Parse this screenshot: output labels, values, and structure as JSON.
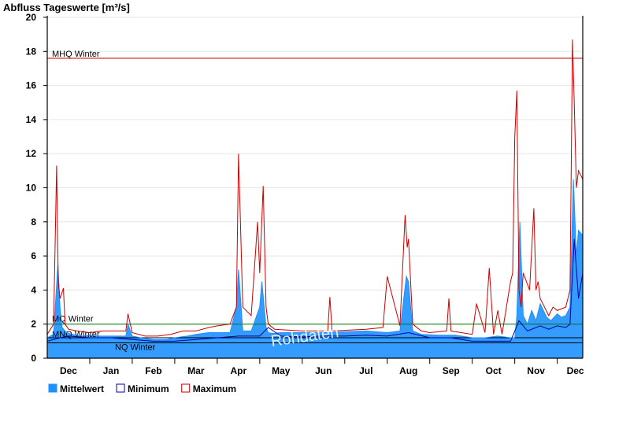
{
  "chart_data": {
    "type": "area",
    "title": "Abfluss Tageswerte [m³/s]",
    "ylim": [
      0,
      20
    ],
    "yticks": [
      0,
      2,
      4,
      6,
      8,
      10,
      12,
      14,
      16,
      18,
      20
    ],
    "x_unit": "month",
    "xlim": [
      0,
      12.6
    ],
    "month_labels": [
      "Dec",
      "Jan",
      "Feb",
      "Mar",
      "Apr",
      "May",
      "Jun",
      "Jul",
      "Aug",
      "Sep",
      "Oct",
      "Nov",
      "Dec"
    ],
    "grid": true,
    "legend_position": "bottom-left",
    "watermark": "Rohdaten",
    "reference_lines": [
      {
        "label": "MHQ Winter",
        "value": 17.6,
        "color": "#cc0000"
      },
      {
        "label": "MQ Winter",
        "value": 2.0,
        "color": "#007700"
      },
      {
        "label": "MNQ Winter",
        "value": 1.2,
        "color": "#000000"
      },
      {
        "label": "NQ Winter",
        "value": 0.9,
        "color": "#000000"
      }
    ],
    "series": [
      {
        "name": "Mittelwert",
        "color": "#1e90ff",
        "fill": true,
        "x": [
          0.0,
          0.15,
          0.25,
          0.3,
          0.35,
          0.45,
          0.6,
          0.8,
          1.0,
          1.2,
          1.5,
          1.7,
          1.85,
          1.9,
          2.0,
          2.2,
          2.5,
          2.8,
          3.0,
          3.3,
          3.5,
          3.8,
          4.0,
          4.3,
          4.45,
          4.5,
          4.6,
          4.8,
          5.0,
          5.05,
          5.15,
          5.2,
          5.3,
          5.5,
          6.0,
          6.5,
          7.0,
          7.5,
          8.0,
          8.3,
          8.45,
          8.5,
          8.6,
          8.8,
          9.2,
          9.6,
          10.0,
          10.3,
          10.6,
          10.9,
          11.0,
          11.05,
          11.12,
          11.2,
          11.3,
          11.4,
          11.5,
          11.6,
          11.75,
          11.85,
          12.0,
          12.1,
          12.2,
          12.3,
          12.38,
          12.45,
          12.5,
          12.6
        ],
        "y": [
          1.2,
          1.4,
          5.5,
          3.0,
          1.8,
          1.5,
          1.4,
          1.3,
          1.35,
          1.3,
          1.3,
          1.3,
          1.3,
          2.0,
          1.3,
          1.2,
          1.1,
          1.1,
          1.2,
          1.3,
          1.4,
          1.5,
          1.5,
          1.5,
          3.0,
          5.2,
          1.6,
          1.6,
          3.0,
          4.5,
          1.8,
          1.5,
          1.45,
          1.5,
          1.5,
          1.5,
          1.55,
          1.6,
          1.5,
          1.6,
          4.8,
          4.5,
          1.6,
          1.4,
          1.35,
          1.35,
          1.2,
          1.2,
          1.3,
          1.2,
          1.2,
          2.5,
          8.0,
          2.5,
          2.0,
          2.8,
          2.2,
          3.2,
          2.4,
          2.2,
          2.6,
          2.4,
          2.5,
          3.0,
          10.5,
          6.0,
          7.5,
          7.2
        ]
      },
      {
        "name": "Minimum",
        "color": "#0000aa",
        "fill": false,
        "x": [
          0.0,
          0.3,
          0.5,
          1.0,
          1.5,
          2.0,
          2.5,
          3.0,
          3.5,
          4.0,
          4.5,
          5.0,
          5.2,
          5.5,
          6.0,
          6.5,
          7.0,
          7.5,
          8.0,
          8.5,
          9.0,
          9.5,
          10.0,
          10.5,
          10.9,
          11.1,
          11.3,
          11.6,
          11.8,
          12.0,
          12.2,
          12.3,
          12.4,
          12.5,
          12.6
        ],
        "y": [
          1.0,
          1.2,
          1.3,
          1.2,
          1.2,
          1.1,
          1.0,
          1.0,
          1.1,
          1.2,
          1.3,
          1.3,
          1.8,
          1.3,
          1.25,
          1.3,
          1.3,
          1.35,
          1.3,
          1.5,
          1.2,
          1.2,
          1.0,
          1.0,
          1.0,
          2.2,
          1.6,
          1.9,
          1.7,
          1.9,
          1.8,
          2.0,
          7.0,
          3.5,
          5.0
        ]
      },
      {
        "name": "Maximum",
        "color": "#cc0000",
        "fill": false,
        "x": [
          0.0,
          0.15,
          0.22,
          0.26,
          0.3,
          0.38,
          0.42,
          0.5,
          0.7,
          1.0,
          1.3,
          1.6,
          1.85,
          1.9,
          2.0,
          2.3,
          2.6,
          2.9,
          3.2,
          3.5,
          3.8,
          4.0,
          4.3,
          4.45,
          4.5,
          4.6,
          4.8,
          4.95,
          5.0,
          5.08,
          5.15,
          5.2,
          5.35,
          6.0,
          6.6,
          6.65,
          6.7,
          7.5,
          7.9,
          8.0,
          8.3,
          8.42,
          8.47,
          8.5,
          8.6,
          8.8,
          9.0,
          9.4,
          9.45,
          9.5,
          10.0,
          10.1,
          10.3,
          10.4,
          10.5,
          10.6,
          10.7,
          10.9,
          10.95,
          11.0,
          11.05,
          11.1,
          11.15,
          11.2,
          11.35,
          11.45,
          11.5,
          11.55,
          11.6,
          11.8,
          11.9,
          12.0,
          12.2,
          12.3,
          12.36,
          12.4,
          12.45,
          12.5,
          12.6
        ],
        "y": [
          1.4,
          2.0,
          11.3,
          4.5,
          3.5,
          4.1,
          2.0,
          1.7,
          1.6,
          1.5,
          1.6,
          1.6,
          1.6,
          2.6,
          1.5,
          1.3,
          1.3,
          1.4,
          1.6,
          1.6,
          1.8,
          1.9,
          2.0,
          3.0,
          12.0,
          3.0,
          2.5,
          8.0,
          5.0,
          10.1,
          3.0,
          2.0,
          1.7,
          1.6,
          1.6,
          3.6,
          1.6,
          1.7,
          1.8,
          4.8,
          1.9,
          8.4,
          6.5,
          7.0,
          2.0,
          1.6,
          1.5,
          1.6,
          3.5,
          1.6,
          1.4,
          3.2,
          1.5,
          5.3,
          1.4,
          2.8,
          1.4,
          4.5,
          5.0,
          13.0,
          15.7,
          4.0,
          3.0,
          5.0,
          4.0,
          8.8,
          4.0,
          4.5,
          3.5,
          2.5,
          3.0,
          2.8,
          3.0,
          4.0,
          18.7,
          15.0,
          10.0,
          11.0,
          10.5
        ]
      }
    ]
  }
}
